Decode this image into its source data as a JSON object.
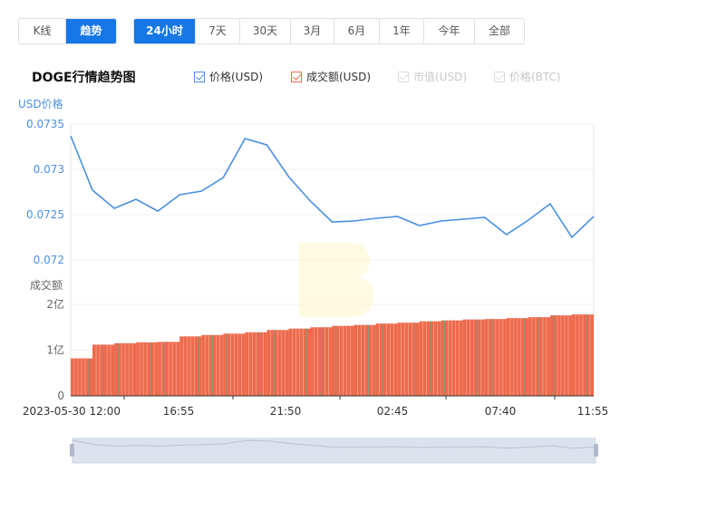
{
  "toolbar": {
    "modes": [
      "K线",
      "趋势"
    ],
    "active_mode": "趋势",
    "ranges": [
      "24小时",
      "7天",
      "30天",
      "3月",
      "6月",
      "1年",
      "今年",
      "全部"
    ],
    "active_range": "24小时"
  },
  "chart_title": "DOGE行情趋势图",
  "legend": [
    {
      "label": "价格(USD)",
      "checked": true,
      "color": "#4a90e2"
    },
    {
      "label": "成交额(USD)",
      "checked": true,
      "color": "#ee6a4d"
    },
    {
      "label": "市值(USD)",
      "checked": false
    },
    {
      "label": "价格(BTC)",
      "checked": false
    }
  ],
  "colors": {
    "price_line": "#4a90e2",
    "volume_bar": "#ee6a4d",
    "volume_bar_alt": "#3cb6a0",
    "axis_label": "#4a90e2"
  },
  "chart_data": [
    {
      "type": "line",
      "ylabel": "USD价格",
      "ylim": [
        0.07195,
        0.0735
      ],
      "yticks": [
        "0.0735",
        "0.073",
        "0.0725",
        "0.072"
      ],
      "x": [
        "2023-05-30 12:00",
        "13:00",
        "14:00",
        "15:00",
        "16:00",
        "17:00",
        "18:00",
        "19:00",
        "20:00",
        "21:00",
        "22:00",
        "23:00",
        "00:00",
        "01:00",
        "02:00",
        "03:00",
        "04:00",
        "05:00",
        "06:00",
        "07:00",
        "08:00",
        "09:00",
        "10:00",
        "11:00",
        "11:55"
      ],
      "series": [
        {
          "values": [
            0.07337,
            0.07277,
            0.07257,
            0.07267,
            0.07254,
            0.07272,
            0.07276,
            0.07291,
            0.07334,
            0.07327,
            0.07292,
            0.07265,
            0.07242,
            0.07243,
            0.07246,
            0.07248,
            0.07238,
            0.07243,
            0.07245,
            0.07247,
            0.07228,
            0.07244,
            0.07262,
            0.07225,
            0.07248
          ]
        }
      ]
    },
    {
      "type": "bar",
      "ylabel": "成交额",
      "ylim": [
        0,
        200000000
      ],
      "yticks": [
        "2亿",
        "1亿",
        "0"
      ],
      "xticks": [
        "2023-05-30 12:00",
        "16:55",
        "21:50",
        "02:45",
        "07:40",
        "11:55"
      ],
      "values": [
        82000000,
        112000000,
        115000000,
        117000000,
        118000000,
        130000000,
        133000000,
        136000000,
        139000000,
        144000000,
        147000000,
        150000000,
        153000000,
        155000000,
        158000000,
        160000000,
        163000000,
        165000000,
        167000000,
        168000000,
        170000000,
        172000000,
        176000000,
        178000000
      ]
    }
  ]
}
